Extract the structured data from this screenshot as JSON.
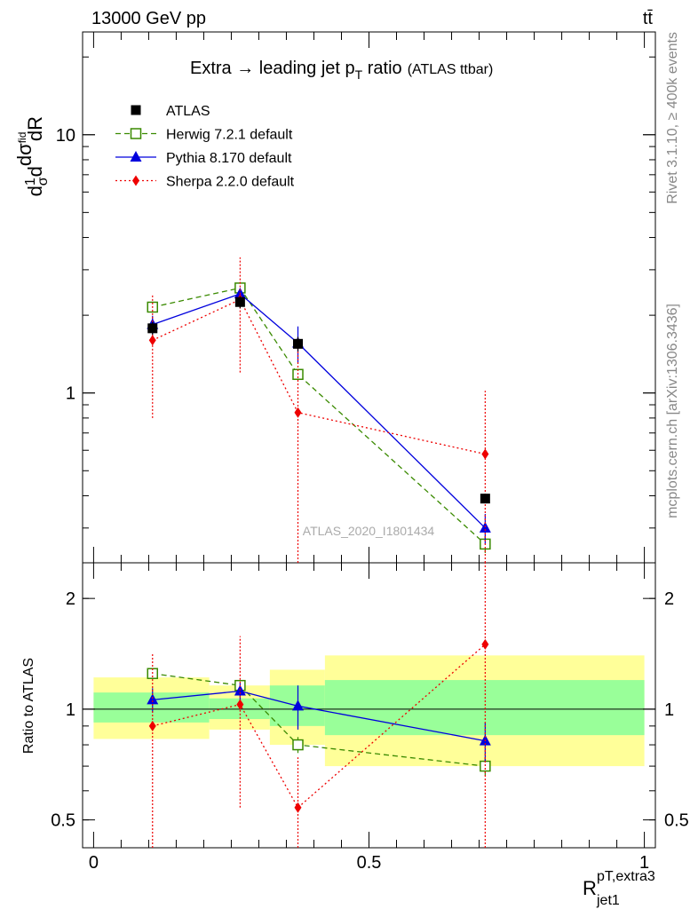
{
  "header": {
    "left": "13000 GeV pp",
    "right": "tt̄"
  },
  "plot_title": {
    "main": "Extra → leading jet p",
    "sub_T": "T",
    "rest": " ratio",
    "small": "(ATLAS ttbar)"
  },
  "side_labels": {
    "rivet": "Rivet 3.1.10, ≥ 400k events",
    "mcplots": "mcplots.cern.ch [arXiv:1306.3436]"
  },
  "watermark": "ATLAS_2020_I1801434",
  "ylabel_main": {
    "text": "d¹⁄σ dσfid / dR pT,extra3 jet1",
    "dR": "dR"
  },
  "ylabel_ratio": "Ratio to ATLAS",
  "xlabel": {
    "base": "R",
    "sup": "pT,extra3",
    "sub": "jet1"
  },
  "colors": {
    "atlas": "#000000",
    "herwig": "#3a8a00",
    "pythia": "#0000dd",
    "sherpa": "#ee0000",
    "band_outer": "#ffff99",
    "band_inner": "#99ff99"
  },
  "chart_data": [
    {
      "type": "line",
      "panel": "main",
      "yscale": "log",
      "xlim": [
        -0.02,
        1.02
      ],
      "ylim": [
        0.22,
        25
      ],
      "yticks": [
        {
          "value": 1,
          "label": "1"
        },
        {
          "value": 10,
          "label": "10"
        }
      ],
      "legend_position": "top-left",
      "series": [
        {
          "name": "ATLAS",
          "style": "data",
          "x": [
            0.107,
            0.266,
            0.371,
            0.711
          ],
          "y": [
            1.78,
            2.25,
            1.55,
            0.39
          ],
          "yerr_lo": [
            0.1,
            0.12,
            0.1,
            0.0
          ],
          "yerr_hi": [
            0.1,
            0.12,
            0.1,
            0.0
          ]
        },
        {
          "name": "Herwig 7.2.1 default",
          "style": "dashed-open-square",
          "x": [
            0.107,
            0.266,
            0.371,
            0.711
          ],
          "y": [
            2.15,
            2.55,
            1.18,
            0.26
          ],
          "yerr_lo": [
            0.06,
            0.08,
            0.06,
            0.02
          ],
          "yerr_hi": [
            0.06,
            0.08,
            0.06,
            0.02
          ]
        },
        {
          "name": "Pythia 8.170 default",
          "style": "solid-filled-triangle",
          "x": [
            0.107,
            0.266,
            0.371,
            0.711
          ],
          "y": [
            1.84,
            2.42,
            1.56,
            0.3
          ],
          "yerr_lo": [
            0.15,
            0.12,
            0.25,
            0.04
          ],
          "yerr_hi": [
            0.15,
            0.12,
            0.25,
            0.04
          ]
        },
        {
          "name": "Sherpa 2.2.0 default",
          "style": "dotted-filled-diamond",
          "x": [
            0.107,
            0.266,
            0.371,
            0.711
          ],
          "y": [
            1.6,
            2.3,
            0.84,
            0.58
          ],
          "yerr_lo": [
            0.8,
            1.1,
            0.8,
            0.57
          ],
          "yerr_hi": [
            0.8,
            1.05,
            0.8,
            0.44
          ]
        }
      ]
    },
    {
      "type": "line",
      "panel": "ratio",
      "yscale": "log",
      "xlim": [
        -0.02,
        1.02
      ],
      "ylim": [
        0.42,
        2.5
      ],
      "yticks": [
        {
          "value": 0.5,
          "label": "0.5"
        },
        {
          "value": 1,
          "label": "1"
        },
        {
          "value": 2,
          "label": "2"
        }
      ],
      "xticks": [
        {
          "value": 0,
          "label": "0"
        },
        {
          "value": 0.5,
          "label": "0.5"
        },
        {
          "value": 1,
          "label": "1"
        }
      ],
      "bins": [
        {
          "x0": 0.0,
          "x1": 0.21,
          "outer": [
            0.83,
            1.22
          ],
          "inner": [
            0.92,
            1.11
          ]
        },
        {
          "x0": 0.21,
          "x1": 0.32,
          "outer": [
            0.88,
            1.16
          ],
          "inner": [
            0.94,
            1.07
          ]
        },
        {
          "x0": 0.32,
          "x1": 0.42,
          "outer": [
            0.8,
            1.28
          ],
          "inner": [
            0.9,
            1.16
          ]
        },
        {
          "x0": 0.42,
          "x1": 1.0,
          "outer": [
            0.7,
            1.4
          ],
          "inner": [
            0.85,
            1.2
          ]
        }
      ],
      "series": [
        {
          "name": "Herwig 7.2.1 default",
          "style": "dashed-open-square",
          "x": [
            0.107,
            0.266,
            0.371,
            0.711
          ],
          "y": [
            1.25,
            1.16,
            0.8,
            0.7
          ],
          "yerr_lo": [
            0.04,
            0.04,
            0.04,
            0.04
          ],
          "yerr_hi": [
            0.04,
            0.04,
            0.04,
            0.04
          ]
        },
        {
          "name": "Pythia 8.170 default",
          "style": "solid-filled-triangle",
          "x": [
            0.107,
            0.266,
            0.371,
            0.711
          ],
          "y": [
            1.06,
            1.12,
            1.02,
            0.82
          ],
          "yerr_lo": [
            0.08,
            0.06,
            0.14,
            0.1
          ],
          "yerr_hi": [
            0.08,
            0.06,
            0.14,
            0.1
          ]
        },
        {
          "name": "Sherpa 2.2.0 default",
          "style": "dotted-filled-diamond",
          "x": [
            0.107,
            0.266,
            0.371,
            0.711
          ],
          "y": [
            0.9,
            1.03,
            0.54,
            1.5
          ],
          "yerr_lo": [
            0.51,
            0.49,
            0.2,
            1.1
          ],
          "yerr_hi": [
            0.51,
            0.55,
            0.2,
            1.5
          ]
        }
      ]
    }
  ]
}
